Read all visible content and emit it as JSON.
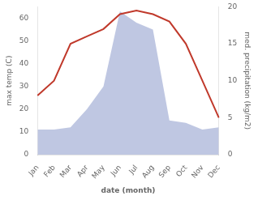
{
  "chart_data": {
    "type": "line",
    "xlabel": "date (month)",
    "ylabel": "max temp (C)",
    "y2label": "med. precipitation (kg/m2)",
    "categories": [
      "Jan",
      "Feb",
      "Mar",
      "Apr",
      "May",
      "Jun",
      "Jul",
      "Aug",
      "Sep",
      "Oct",
      "Nov",
      "Dec"
    ],
    "series": [
      {
        "type": "area",
        "color": "#aab4d8",
        "values": [
          11,
          11,
          12,
          20,
          30,
          63,
          58,
          55,
          15,
          14,
          11,
          12
        ]
      },
      {
        "type": "line",
        "color": "#c0392b",
        "axis": "y2",
        "values": [
          8,
          10,
          15,
          16,
          17,
          19,
          19.5,
          19,
          18,
          15,
          10,
          5
        ]
      }
    ],
    "ylim": [
      0,
      65
    ],
    "yticks": [
      0,
      10,
      20,
      30,
      40,
      50,
      60
    ],
    "y2lim": [
      0,
      20
    ],
    "y2ticks": [
      0,
      5,
      10,
      15,
      20
    ],
    "grid": false
  }
}
